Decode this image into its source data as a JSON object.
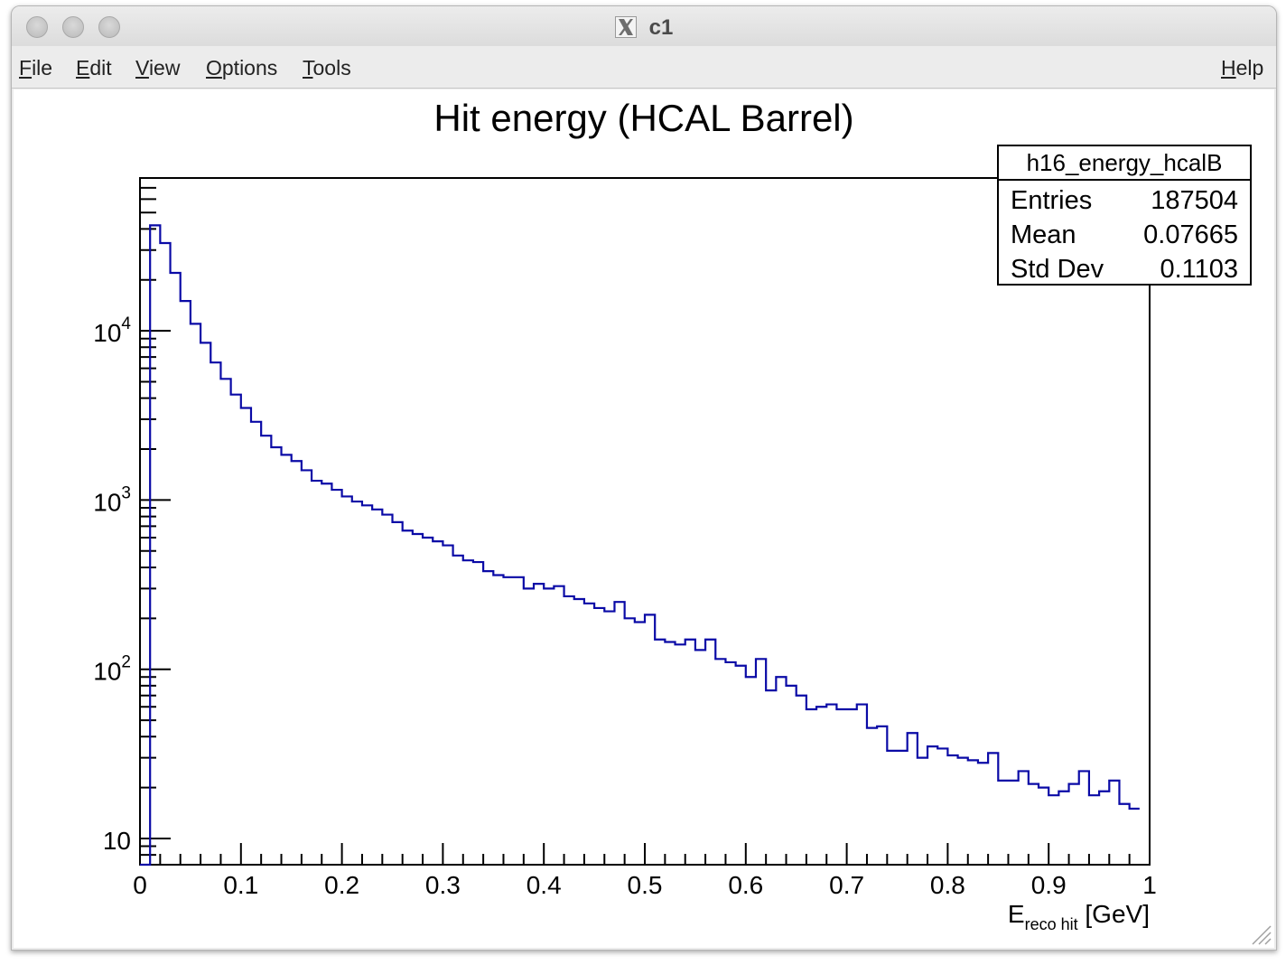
{
  "window": {
    "title": "c1",
    "app_icon": "x11-icon"
  },
  "menu": {
    "items": [
      {
        "label": "File",
        "mnemonic": "F",
        "rest": "ile"
      },
      {
        "label": "Edit",
        "mnemonic": "E",
        "rest": "dit"
      },
      {
        "label": "View",
        "mnemonic": "V",
        "rest": "iew"
      },
      {
        "label": "Options",
        "mnemonic": "O",
        "rest": "ptions"
      },
      {
        "label": "Tools",
        "mnemonic": "T",
        "rest": "ools"
      }
    ],
    "help": {
      "label": "Help",
      "mnemonic": "H",
      "rest": "elp"
    }
  },
  "stats_box": {
    "name": "h16_energy_hcalB",
    "rows": [
      {
        "label": "Entries",
        "value": "187504"
      },
      {
        "label": "Mean",
        "value": "0.07665"
      },
      {
        "label": "Std Dev",
        "value": "0.1103"
      }
    ]
  },
  "colors": {
    "histogram_line": "#0a0aa6",
    "axis": "#000000"
  },
  "chart_data": {
    "type": "histogram",
    "title": "Hit energy (HCAL Barrel)",
    "xlabel_main": "E",
    "xlabel_sub": "reco hit",
    "xlabel_unit": " [GeV]",
    "xlim": [
      0,
      1
    ],
    "ylim": [
      7,
      80000
    ],
    "ylog": true,
    "grid": false,
    "bin_width": 0.01,
    "x_ticks": [
      "0",
      "0.1",
      "0.2",
      "0.3",
      "0.4",
      "0.5",
      "0.6",
      "0.7",
      "0.8",
      "0.9",
      "1"
    ],
    "y_ticks": [
      {
        "value": 10,
        "base": "10",
        "exp": ""
      },
      {
        "value": 100,
        "base": "10",
        "exp": "2"
      },
      {
        "value": 1000,
        "base": "10",
        "exp": "3"
      },
      {
        "value": 10000,
        "base": "10",
        "exp": "4"
      }
    ],
    "values": [
      6,
      42000,
      33000,
      22000,
      15000,
      11000,
      8500,
      6500,
      5200,
      4200,
      3500,
      2900,
      2400,
      2050,
      1850,
      1700,
      1500,
      1300,
      1250,
      1150,
      1050,
      980,
      930,
      880,
      820,
      740,
      660,
      630,
      600,
      570,
      540,
      470,
      440,
      430,
      380,
      360,
      350,
      350,
      300,
      320,
      300,
      310,
      270,
      260,
      245,
      230,
      220,
      250,
      200,
      190,
      210,
      150,
      145,
      140,
      150,
      130,
      150,
      115,
      110,
      105,
      90,
      115,
      75,
      90,
      80,
      70,
      58,
      60,
      62,
      58,
      58,
      62,
      45,
      46,
      33,
      33,
      42,
      30,
      35,
      34,
      31,
      30,
      29,
      28,
      32,
      22,
      22,
      25,
      21,
      20,
      18,
      19,
      21,
      25,
      18,
      19,
      22,
      16,
      15
    ]
  }
}
